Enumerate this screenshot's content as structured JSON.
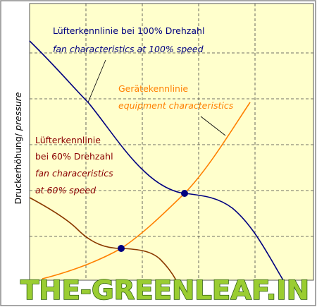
{
  "labels": {
    "fan100_de": "Lüfterkennlinie bei 100% Drehzahl",
    "fan100_en": "fan characteristics at 100% speed",
    "equipment_de": "Gerätekennlinie",
    "equipment_en": "equipment characteristics",
    "fan60_de_1": "Lüfterkennlinie",
    "fan60_de_2": "bei 60% Drehzahl",
    "fan60_en_1": "fan characeristics",
    "fan60_en_2": "at 60% speed",
    "y_axis_de": "Druckerhöhung/",
    "y_axis_en": "pressure"
  },
  "watermark": "THE-GREENLEAF.IN"
}
